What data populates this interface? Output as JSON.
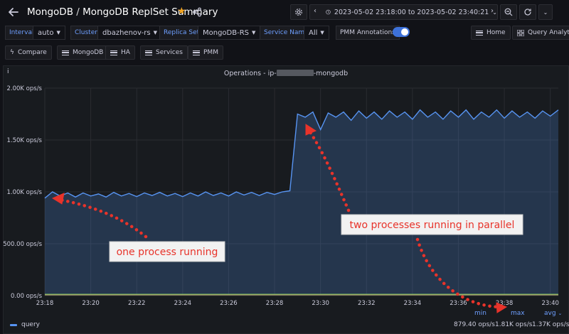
{
  "header": {
    "title_prefix": "MongoDB",
    "title_separator": " / ",
    "title_main": "MongoDB ReplSet Summary",
    "time_range": "2023-05-02 23:18:00 to 2023-05-02 23:40:21",
    "star_color": "#f5a623"
  },
  "variables": {
    "interval_label": "Interval",
    "interval_value": "auto",
    "cluster_label": "Cluster",
    "cluster_value": "dbazhenov-rs",
    "replica_label": "Replica Set",
    "replica_value": "MongoDB-RS",
    "service_label": "Service Name",
    "service_value": "All",
    "pmm_annotations_label": "PMM Annotations",
    "pmm_annotations_on": true,
    "home_label": "Home",
    "query_analytics_label": "Query Analytics"
  },
  "links": [
    "Compare",
    "MongoDB",
    "HA",
    "Services",
    "PMM"
  ],
  "panel": {
    "info_icon": "info-icon",
    "title_prefix": "Operations - ip-",
    "title_suffix": "-mongodb"
  },
  "annotations": {
    "one": "one process running",
    "two": "two processes running in parallel"
  },
  "legend": {
    "series_name": "query",
    "min_label": "min",
    "max_label": "max",
    "avg_label": "avg",
    "min_value": "879.40 ops/s",
    "max_value": "1.81K ops/s",
    "avg_value": "1.37K ops/s"
  },
  "chart_data": {
    "type": "area",
    "x_ticks": [
      "23:18",
      "23:20",
      "23:22",
      "23:24",
      "23:26",
      "23:28",
      "23:30",
      "23:32",
      "23:34",
      "23:36",
      "23:38",
      "23:40"
    ],
    "y_ticks": [
      "0.00 ops/s",
      "500.00 ops/s",
      "1.00K ops/s",
      "1.50K ops/s",
      "2.00K ops/s"
    ],
    "ylim": [
      0,
      2000
    ],
    "xlim": [
      "23:18",
      "23:40:21"
    ],
    "series": [
      {
        "name": "query",
        "color": "#5794f2",
        "values": [
          [
            "23:18:00",
            940
          ],
          [
            "23:18:20",
            1000
          ],
          [
            "23:18:40",
            960
          ],
          [
            "23:19:00",
            990
          ],
          [
            "23:19:20",
            950
          ],
          [
            "23:19:40",
            990
          ],
          [
            "23:20:00",
            960
          ],
          [
            "23:20:20",
            980
          ],
          [
            "23:20:40",
            950
          ],
          [
            "23:21:00",
            995
          ],
          [
            "23:21:20",
            960
          ],
          [
            "23:21:40",
            985
          ],
          [
            "23:22:00",
            955
          ],
          [
            "23:22:20",
            990
          ],
          [
            "23:22:40",
            965
          ],
          [
            "23:23:00",
            995
          ],
          [
            "23:23:20",
            960
          ],
          [
            "23:23:40",
            985
          ],
          [
            "23:24:00",
            955
          ],
          [
            "23:24:20",
            990
          ],
          [
            "23:24:40",
            960
          ],
          [
            "23:25:00",
            1000
          ],
          [
            "23:25:20",
            965
          ],
          [
            "23:25:40",
            990
          ],
          [
            "23:26:00",
            960
          ],
          [
            "23:26:20",
            1000
          ],
          [
            "23:26:40",
            970
          ],
          [
            "23:27:00",
            995
          ],
          [
            "23:27:20",
            965
          ],
          [
            "23:27:40",
            995
          ],
          [
            "23:28:00",
            975
          ],
          [
            "23:28:20",
            1000
          ],
          [
            "23:28:40",
            1010
          ],
          [
            "23:29:00",
            1750
          ],
          [
            "23:29:20",
            1720
          ],
          [
            "23:29:40",
            1770
          ],
          [
            "23:30:00",
            1600
          ],
          [
            "23:30:20",
            1760
          ],
          [
            "23:30:40",
            1720
          ],
          [
            "23:31:00",
            1770
          ],
          [
            "23:31:20",
            1690
          ],
          [
            "23:31:40",
            1780
          ],
          [
            "23:32:00",
            1710
          ],
          [
            "23:32:20",
            1770
          ],
          [
            "23:32:40",
            1700
          ],
          [
            "23:33:00",
            1780
          ],
          [
            "23:33:20",
            1720
          ],
          [
            "23:33:40",
            1770
          ],
          [
            "23:34:00",
            1700
          ],
          [
            "23:34:20",
            1790
          ],
          [
            "23:34:40",
            1720
          ],
          [
            "23:35:00",
            1770
          ],
          [
            "23:35:20",
            1700
          ],
          [
            "23:35:40",
            1780
          ],
          [
            "23:36:00",
            1720
          ],
          [
            "23:36:20",
            1790
          ],
          [
            "23:36:40",
            1700
          ],
          [
            "23:37:00",
            1770
          ],
          [
            "23:37:20",
            1720
          ],
          [
            "23:37:40",
            1790
          ],
          [
            "23:38:00",
            1710
          ],
          [
            "23:38:20",
            1780
          ],
          [
            "23:38:40",
            1720
          ],
          [
            "23:39:00",
            1770
          ],
          [
            "23:39:20",
            1710
          ],
          [
            "23:39:40",
            1780
          ],
          [
            "23:40:00",
            1730
          ],
          [
            "23:40:21",
            1790
          ]
        ]
      }
    ],
    "grid": true,
    "legend_position": "bottom"
  }
}
